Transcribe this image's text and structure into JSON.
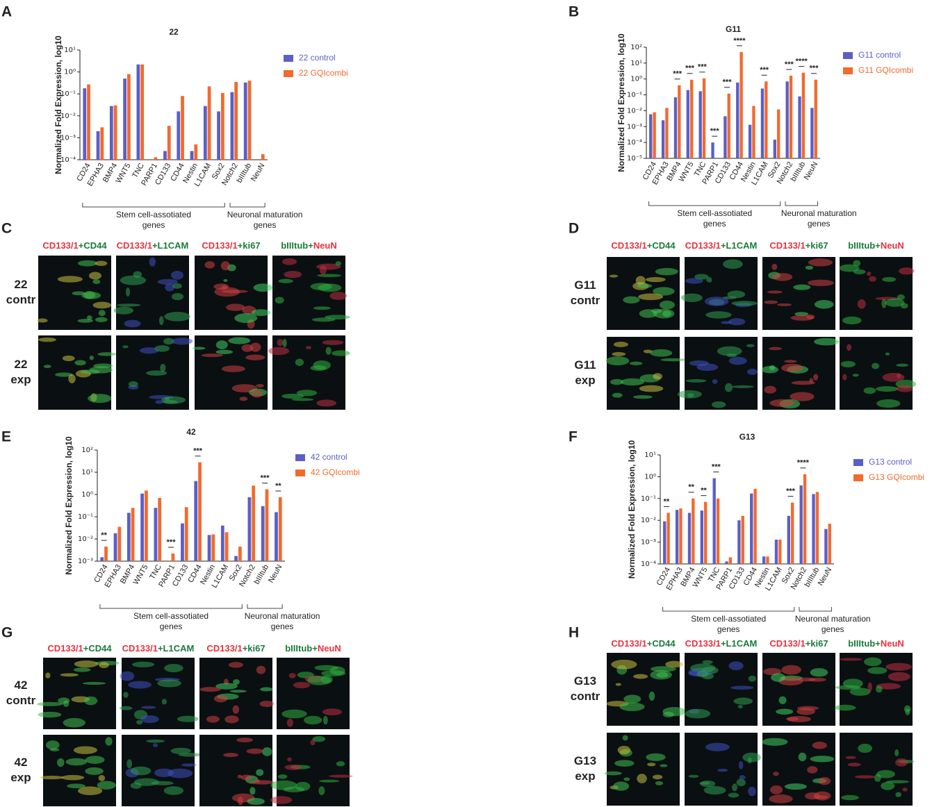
{
  "chart_data": [
    {
      "type": "bar",
      "panel": "A",
      "title": "22",
      "y_label": "Normalized Fold Expression, log10",
      "log_y": true,
      "legend": "right",
      "categories": [
        "CD24",
        "EPHA3",
        "BMP4",
        "WNT5",
        "TNC",
        "PARP1",
        "CD133",
        "CD44",
        "Nestin",
        "L1CAM",
        "Sox2",
        "Notch2",
        "bIIItub",
        "NeuN"
      ],
      "series": [
        {
          "name": "22 control",
          "color": "#5b5fc7",
          "values": [
            0.18,
            0.002,
            0.028,
            0.5,
            2.2,
            null,
            0.00025,
            0.016,
            0.00025,
            0.028,
            0.016,
            0.12,
            0.33,
            null
          ]
        },
        {
          "name": "22 GQIcombi",
          "color": "#f26a2e",
          "values": [
            0.27,
            0.003,
            0.03,
            0.8,
            2.2,
            0.00013,
            0.0035,
            0.08,
            0.0005,
            0.22,
            0.11,
            0.35,
            0.4,
            0.00018
          ]
        }
      ],
      "ylim": [
        0.0001,
        10
      ],
      "yticks": [
        {
          "value": 0.0001,
          "label": "10⁻⁴"
        },
        {
          "value": 0.001,
          "label": "10⁻³"
        },
        {
          "value": 0.01,
          "label": "10⁻²"
        },
        {
          "value": 0.1,
          "label": "10⁻¹"
        },
        {
          "value": 1,
          "label": "10⁰"
        },
        {
          "value": 10,
          "label": "10¹"
        }
      ],
      "annotations": [],
      "groups": [
        {
          "label": [
            "Stem cell-assotiated",
            "genes"
          ],
          "from": "CD24",
          "to": "Sox2"
        },
        {
          "label": [
            "Neuronal maturation",
            "genes"
          ],
          "from": "Notch2",
          "to": "NeuN"
        }
      ]
    },
    {
      "type": "bar",
      "panel": "B",
      "title": "G11",
      "y_label": "Normalized Fold Expression, log10",
      "log_y": true,
      "legend": "right",
      "categories": [
        "CD24",
        "EPHA3",
        "BMP4",
        "WNT5",
        "TNC",
        "PARP1",
        "CD133",
        "CD44",
        "Nestin",
        "L1CAM",
        "Sox2",
        "Notch2",
        "bIIItub",
        "NeuN"
      ],
      "series": [
        {
          "name": "G11 control",
          "color": "#5b5fc7",
          "values": [
            0.006,
            0.0025,
            0.07,
            0.2,
            0.17,
            0.0001,
            0.0045,
            0.6,
            0.0013,
            0.25,
            0.00015,
            0.7,
            0.08,
            0.015
          ]
        },
        {
          "name": "G11 GQIcombi",
          "color": "#f26a2e",
          "values": [
            0.008,
            0.015,
            0.4,
            0.9,
            1.1,
            null,
            0.12,
            50,
            0.02,
            0.7,
            0.012,
            1.6,
            2.5,
            0.9
          ]
        }
      ],
      "ylim": [
        1e-05,
        100
      ],
      "yticks": [
        {
          "value": 1e-05,
          "label": "10⁻⁵"
        },
        {
          "value": 0.0001,
          "label": "10⁻⁴"
        },
        {
          "value": 0.001,
          "label": "10⁻³"
        },
        {
          "value": 0.01,
          "label": "10⁻²"
        },
        {
          "value": 0.1,
          "label": "10⁻¹"
        },
        {
          "value": 1,
          "label": "10⁰"
        },
        {
          "value": 10,
          "label": "10¹"
        },
        {
          "value": 100,
          "label": "10²"
        }
      ],
      "annotations": [
        {
          "category": "BMP4",
          "text": "***"
        },
        {
          "category": "WNT5",
          "text": "***"
        },
        {
          "category": "TNC",
          "text": "***"
        },
        {
          "category": "PARP1",
          "text": "***"
        },
        {
          "category": "CD133",
          "text": "***"
        },
        {
          "category": "CD44",
          "text": "****"
        },
        {
          "category": "L1CAM",
          "text": "***"
        },
        {
          "category": "Notch2",
          "text": "***"
        },
        {
          "category": "bIIItub",
          "text": "****"
        },
        {
          "category": "NeuN",
          "text": "***"
        }
      ],
      "groups": [
        {
          "label": [
            "Stem cell-assotiated",
            "genes"
          ],
          "from": "CD24",
          "to": "Sox2"
        },
        {
          "label": [
            "Neuronal maturation",
            "genes"
          ],
          "from": "Notch2",
          "to": "NeuN"
        }
      ]
    },
    {
      "type": "bar",
      "panel": "E",
      "title": "42",
      "y_label": "Normalized Fold Expression, log10",
      "log_y": true,
      "legend": "right",
      "categories": [
        "CD24",
        "EPHA3",
        "BMP4",
        "WNT5",
        "TNC",
        "PARP1",
        "CD133",
        "CD44",
        "Nestin",
        "L1CAM",
        "Sox2",
        "Notch2",
        "bIIItub",
        "NeuN"
      ],
      "series": [
        {
          "name": "42 control",
          "color": "#5b5fc7",
          "values": [
            0.0015,
            0.018,
            0.15,
            1.1,
            0.25,
            null,
            0.05,
            4,
            0.015,
            0.04,
            0.0017,
            0.75,
            0.3,
            0.16
          ]
        },
        {
          "name": "42 GQIcombi",
          "color": "#f26a2e",
          "values": [
            0.0045,
            0.035,
            0.25,
            1.5,
            0.7,
            0.0022,
            0.27,
            28,
            0.016,
            0.02,
            0.0045,
            2.5,
            1.7,
            0.75
          ]
        }
      ],
      "ylim": [
        0.001,
        100
      ],
      "yticks": [
        {
          "value": 0.001,
          "label": "10⁻³"
        },
        {
          "value": 0.01,
          "label": "10⁻²"
        },
        {
          "value": 0.1,
          "label": "10⁻¹"
        },
        {
          "value": 1,
          "label": "10⁰"
        },
        {
          "value": 10,
          "label": "10¹"
        },
        {
          "value": 100,
          "label": "10²"
        }
      ],
      "annotations": [
        {
          "category": "CD24",
          "text": "**"
        },
        {
          "category": "PARP1",
          "text": "***"
        },
        {
          "category": "CD44",
          "text": "***"
        },
        {
          "category": "bIIItub",
          "text": "***"
        },
        {
          "category": "NeuN",
          "text": "**"
        }
      ],
      "groups": [
        {
          "label": [
            "Stem cell-assotiated",
            "genes"
          ],
          "from": "CD24",
          "to": "Sox2"
        },
        {
          "label": [
            "Neuronal maturation",
            "genes"
          ],
          "from": "Notch2",
          "to": "NeuN"
        }
      ]
    },
    {
      "type": "bar",
      "panel": "F",
      "title": "G13",
      "y_label": "Normalized Fold Expression, log10",
      "log_y": true,
      "legend": "right",
      "categories": [
        "CD24",
        "EPHA3",
        "BMP4",
        "WNT5",
        "TNC",
        "PARP1",
        "CD133",
        "CD44",
        "Nestin",
        "L1CAM",
        "Sox2",
        "Notch2",
        "bIIItub",
        "NeuN"
      ],
      "series": [
        {
          "name": "G13 control",
          "color": "#5b5fc7",
          "values": [
            0.009,
            0.03,
            0.022,
            0.028,
            0.85,
            0.00013,
            0.01,
            0.17,
            0.00022,
            0.0013,
            0.016,
            0.4,
            0.16,
            0.004
          ]
        },
        {
          "name": "G13 GQIcombi",
          "color": "#f26a2e",
          "values": [
            0.022,
            0.035,
            0.1,
            0.07,
            0.1,
            0.0002,
            0.016,
            0.28,
            0.00022,
            0.0013,
            0.065,
            1.3,
            0.2,
            0.007
          ]
        }
      ],
      "ylim": [
        0.0001,
        10
      ],
      "yticks": [
        {
          "value": 0.0001,
          "label": "10⁻⁴"
        },
        {
          "value": 0.001,
          "label": "10⁻³"
        },
        {
          "value": 0.01,
          "label": "10⁻²"
        },
        {
          "value": 0.1,
          "label": "10⁻¹"
        },
        {
          "value": 1,
          "label": "10⁰"
        },
        {
          "value": 10,
          "label": "10¹"
        }
      ],
      "annotations": [
        {
          "category": "CD24",
          "text": "**"
        },
        {
          "category": "BMP4",
          "text": "**"
        },
        {
          "category": "WNT5",
          "text": "**"
        },
        {
          "category": "TNC",
          "text": "***"
        },
        {
          "category": "Sox2",
          "text": "***"
        },
        {
          "category": "Notch2",
          "text": "****"
        }
      ],
      "groups": [
        {
          "label": [
            "Stem cell-assotiated",
            "genes"
          ],
          "from": "CD24",
          "to": "Sox2"
        },
        {
          "label": [
            "Neuronal maturation",
            "genes"
          ],
          "from": "Notch2",
          "to": "NeuN"
        }
      ]
    }
  ],
  "image_panels": [
    {
      "panel": "C",
      "columns": [
        [
          {
            "text": "CD133/1",
            "color": "#e8313f"
          },
          {
            "text": "+CD44",
            "color": "#1a7a3a"
          }
        ],
        [
          {
            "text": "CD133/1",
            "color": "#e8313f"
          },
          {
            "text": "+L1CAM",
            "color": "#1a7a3a"
          }
        ],
        [
          {
            "text": "CD133/1",
            "color": "#e8313f"
          },
          {
            "text": "+ki67",
            "color": "#1a7a3a"
          }
        ],
        [
          {
            "text": "bIIItub+",
            "color": "#1a7a3a"
          },
          {
            "text": "NeuN",
            "color": "#e8313f"
          }
        ]
      ],
      "rows": [
        [
          "22",
          "contr"
        ],
        [
          "22",
          "exp"
        ]
      ]
    },
    {
      "panel": "D",
      "columns": [
        [
          {
            "text": "CD133/1",
            "color": "#e8313f"
          },
          {
            "text": "+CD44",
            "color": "#1a7a3a"
          }
        ],
        [
          {
            "text": "CD133/1",
            "color": "#e8313f"
          },
          {
            "text": "+L1CAM",
            "color": "#1a7a3a"
          }
        ],
        [
          {
            "text": "CD133/1",
            "color": "#e8313f"
          },
          {
            "text": "+ki67",
            "color": "#1a7a3a"
          }
        ],
        [
          {
            "text": "bIIItub+",
            "color": "#1a7a3a"
          },
          {
            "text": "NeuN",
            "color": "#e8313f"
          }
        ]
      ],
      "rows": [
        [
          "G11",
          "contr"
        ],
        [
          "G11",
          "exp"
        ]
      ]
    },
    {
      "panel": "G",
      "columns": [
        [
          {
            "text": "CD133/1",
            "color": "#e8313f"
          },
          {
            "text": "+CD44",
            "color": "#1a7a3a"
          }
        ],
        [
          {
            "text": "CD133/1",
            "color": "#e8313f"
          },
          {
            "text": "+L1CAM",
            "color": "#1a7a3a"
          }
        ],
        [
          {
            "text": "CD133/1",
            "color": "#e8313f"
          },
          {
            "text": "+ki67",
            "color": "#1a7a3a"
          }
        ],
        [
          {
            "text": "bIIItub+",
            "color": "#1a7a3a"
          },
          {
            "text": "NeuN",
            "color": "#e8313f"
          }
        ]
      ],
      "rows": [
        [
          "42",
          "contr"
        ],
        [
          "42",
          "exp"
        ]
      ]
    },
    {
      "panel": "H",
      "columns": [
        [
          {
            "text": "CD133/1",
            "color": "#e8313f"
          },
          {
            "text": "+CD44",
            "color": "#1a7a3a"
          }
        ],
        [
          {
            "text": "CD133/1",
            "color": "#e8313f"
          },
          {
            "text": "+L1CAM",
            "color": "#1a7a3a"
          }
        ],
        [
          {
            "text": "CD133/1",
            "color": "#e8313f"
          },
          {
            "text": "+ki67",
            "color": "#1a7a3a"
          }
        ],
        [
          {
            "text": "bIIItub+",
            "color": "#1a7a3a"
          },
          {
            "text": "NeuN",
            "color": "#e8313f"
          }
        ]
      ],
      "rows": [
        [
          "G13",
          "contr"
        ],
        [
          "G13",
          "exp"
        ]
      ]
    }
  ]
}
